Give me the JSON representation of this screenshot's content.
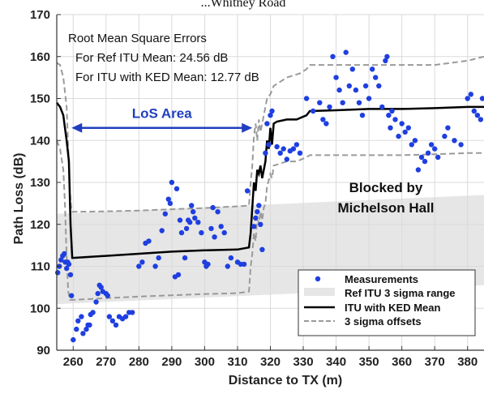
{
  "title_fragment": "...Whitney Road",
  "chart_data": {
    "type": "scatter",
    "xlabel": "Distance to TX (m)",
    "ylabel": "Path Loss (dB)",
    "xlim": [
      255,
      385
    ],
    "ylim": [
      90,
      170
    ],
    "xticks": [
      260,
      270,
      280,
      290,
      300,
      310,
      320,
      330,
      340,
      350,
      360,
      370,
      380
    ],
    "yticks": [
      90,
      100,
      110,
      120,
      130,
      140,
      150,
      160,
      170
    ],
    "grid": true,
    "legend_position": "bottom-right",
    "colors": {
      "measurements": "#1f3fe0",
      "band": "#e6e6e6",
      "ked_mean": "#000000",
      "sigma_offsets": "#9a9a9a",
      "los_arrow": "#1f3fbf"
    },
    "rmse_box": {
      "heading": "Root Mean Square Errors",
      "line1": "For Ref ITU Mean: 24.56 dB",
      "line2": "For ITU with KED Mean: 12.77 dB"
    },
    "annotations": {
      "los_area": "LoS Area",
      "los_range": [
        259,
        315
      ],
      "los_y": 143,
      "blocked_line1": "Blocked by",
      "blocked_line2": "Michelson Hall"
    },
    "series": [
      {
        "name": "Measurements",
        "kind": "points",
        "points": [
          [
            255.3,
            108.5
          ],
          [
            255.8,
            110
          ],
          [
            256.3,
            111.5
          ],
          [
            256.8,
            112.5
          ],
          [
            257.3,
            113
          ],
          [
            257.6,
            111
          ],
          [
            258,
            109.5
          ],
          [
            258.3,
            111
          ],
          [
            258.7,
            110.5
          ],
          [
            259.2,
            108
          ],
          [
            259.5,
            103
          ],
          [
            260,
            92.5
          ],
          [
            261,
            95
          ],
          [
            261.5,
            97
          ],
          [
            262.5,
            98
          ],
          [
            263,
            94
          ],
          [
            264,
            95
          ],
          [
            264.5,
            96
          ],
          [
            265.3,
            98.5
          ],
          [
            265,
            96
          ],
          [
            266,
            99
          ],
          [
            267,
            101.5
          ],
          [
            267.5,
            103.5
          ],
          [
            268,
            105.5
          ],
          [
            268.5,
            105
          ],
          [
            269,
            104
          ],
          [
            270,
            103.5
          ],
          [
            270.5,
            103
          ],
          [
            271,
            98
          ],
          [
            272,
            97
          ],
          [
            273,
            96
          ],
          [
            274,
            98
          ],
          [
            275,
            97.5
          ],
          [
            276,
            98
          ],
          [
            277,
            99
          ],
          [
            278,
            99
          ],
          [
            280,
            110
          ],
          [
            281,
            111
          ],
          [
            282,
            115.5
          ],
          [
            283,
            116
          ],
          [
            285,
            110
          ],
          [
            286,
            112
          ],
          [
            287,
            118.5
          ],
          [
            288,
            122.5
          ],
          [
            289,
            126
          ],
          [
            289.5,
            125
          ],
          [
            290,
            130
          ],
          [
            291,
            107.5
          ],
          [
            291.5,
            128.5
          ],
          [
            292,
            108
          ],
          [
            292.5,
            121
          ],
          [
            293,
            118
          ],
          [
            294,
            112
          ],
          [
            294.5,
            119
          ],
          [
            295,
            121
          ],
          [
            295.5,
            120.5
          ],
          [
            296,
            124.5
          ],
          [
            296.5,
            123
          ],
          [
            297,
            121.5
          ],
          [
            298,
            120.5
          ],
          [
            299,
            118
          ],
          [
            300,
            111
          ],
          [
            300.5,
            110
          ],
          [
            301,
            110.5
          ],
          [
            302,
            119
          ],
          [
            302.5,
            124
          ],
          [
            303,
            117
          ],
          [
            304,
            123
          ],
          [
            305,
            119.5
          ],
          [
            306,
            118
          ],
          [
            307,
            110
          ],
          [
            308,
            112
          ],
          [
            310,
            111
          ],
          [
            311,
            110.5
          ],
          [
            312,
            110.5
          ],
          [
            313,
            128
          ],
          [
            315,
            119.5
          ],
          [
            315.5,
            121.5
          ],
          [
            316,
            123
          ],
          [
            316.5,
            124.5
          ],
          [
            317,
            120
          ],
          [
            317.5,
            114
          ],
          [
            318.5,
            137
          ],
          [
            319,
            144
          ],
          [
            319.5,
            139
          ],
          [
            320,
            146
          ],
          [
            320.5,
            147
          ],
          [
            322,
            138.5
          ],
          [
            323,
            137
          ],
          [
            324,
            138
          ],
          [
            325,
            135.5
          ],
          [
            326,
            137.5
          ],
          [
            327,
            138
          ],
          [
            328,
            139
          ],
          [
            329,
            137
          ],
          [
            331,
            150
          ],
          [
            333,
            147
          ],
          [
            335,
            149
          ],
          [
            336,
            145
          ],
          [
            337,
            144
          ],
          [
            338,
            148
          ],
          [
            339,
            160
          ],
          [
            340,
            155
          ],
          [
            341,
            152
          ],
          [
            342,
            149
          ],
          [
            343,
            161
          ],
          [
            344,
            153
          ],
          [
            345,
            157
          ],
          [
            346,
            152
          ],
          [
            347,
            149
          ],
          [
            348,
            146
          ],
          [
            349,
            153
          ],
          [
            350,
            150
          ],
          [
            351,
            157
          ],
          [
            352,
            155
          ],
          [
            353,
            153
          ],
          [
            354,
            148
          ],
          [
            355,
            159
          ],
          [
            355.5,
            160
          ],
          [
            356,
            146
          ],
          [
            356.5,
            143
          ],
          [
            357,
            147
          ],
          [
            358,
            145
          ],
          [
            359,
            141
          ],
          [
            360,
            144
          ],
          [
            361,
            142
          ],
          [
            362,
            143
          ],
          [
            363,
            139
          ],
          [
            364,
            140
          ],
          [
            365,
            133
          ],
          [
            366,
            136
          ],
          [
            367,
            135
          ],
          [
            368,
            137
          ],
          [
            369,
            139
          ],
          [
            370,
            138
          ],
          [
            371,
            136
          ],
          [
            373,
            141
          ],
          [
            374,
            143
          ],
          [
            376,
            140
          ],
          [
            378,
            139
          ],
          [
            380,
            150
          ],
          [
            381,
            151
          ],
          [
            382,
            147
          ],
          [
            383,
            146
          ],
          [
            384,
            145
          ],
          [
            384.5,
            150
          ]
        ]
      },
      {
        "name": "Ref ITU 3 sigma range",
        "kind": "band",
        "x": [
          255,
          385
        ],
        "upper": [
          122.5,
          127
        ],
        "lower": [
          101,
          105.5
        ]
      },
      {
        "name": "ITU with KED Mean",
        "kind": "line",
        "points": [
          [
            255,
            149
          ],
          [
            256,
            148
          ],
          [
            257,
            146
          ],
          [
            257.5,
            143
          ],
          [
            258,
            140
          ],
          [
            258.7,
            135
          ],
          [
            259.2,
            120
          ],
          [
            259.7,
            112
          ],
          [
            260,
            112
          ],
          [
            270,
            112.5
          ],
          [
            280,
            113
          ],
          [
            290,
            113.5
          ],
          [
            300,
            113.8
          ],
          [
            310,
            114
          ],
          [
            313.5,
            114.5
          ],
          [
            314,
            118
          ],
          [
            314.5,
            124
          ],
          [
            315,
            130
          ],
          [
            315.5,
            128
          ],
          [
            316,
            133
          ],
          [
            316.5,
            132
          ],
          [
            317,
            134
          ],
          [
            317.5,
            131
          ],
          [
            318,
            133
          ],
          [
            318.5,
            135
          ],
          [
            319,
            140
          ],
          [
            319.5,
            138
          ],
          [
            320,
            143
          ],
          [
            320.5,
            139
          ],
          [
            321,
            144
          ],
          [
            322,
            144.5
          ],
          [
            325,
            145
          ],
          [
            328,
            145
          ],
          [
            331,
            146
          ],
          [
            332,
            147
          ],
          [
            340,
            147.2
          ],
          [
            350,
            147.5
          ],
          [
            360,
            147.5
          ],
          [
            370,
            147.7
          ],
          [
            380,
            148
          ],
          [
            385,
            148
          ]
        ]
      },
      {
        "name": "3 sigma offsets",
        "kind": "dashed",
        "upper": [
          [
            255,
            158.5
          ],
          [
            256,
            158
          ],
          [
            257,
            155
          ],
          [
            258,
            148
          ],
          [
            258.5,
            138
          ],
          [
            259,
            128
          ],
          [
            259.5,
            123
          ],
          [
            260,
            123
          ],
          [
            270,
            123.1
          ],
          [
            280,
            123.3
          ],
          [
            290,
            123.6
          ],
          [
            300,
            123.9
          ],
          [
            310,
            124.3
          ],
          [
            313.5,
            124.5
          ],
          [
            314,
            130
          ],
          [
            314.5,
            134
          ],
          [
            315,
            141
          ],
          [
            315.5,
            144
          ],
          [
            316,
            140
          ],
          [
            316.5,
            145
          ],
          [
            317,
            142
          ],
          [
            318,
            146
          ],
          [
            319,
            150
          ],
          [
            320,
            151
          ],
          [
            321,
            153
          ],
          [
            323,
            154
          ],
          [
            325,
            155
          ],
          [
            329,
            156
          ],
          [
            331,
            157
          ],
          [
            332,
            158
          ],
          [
            340,
            158
          ],
          [
            350,
            158
          ],
          [
            360,
            158
          ],
          [
            370,
            158
          ],
          [
            380,
            159
          ],
          [
            385,
            160
          ]
        ],
        "lower": [
          [
            255,
            140
          ],
          [
            256,
            138
          ],
          [
            257,
            133
          ],
          [
            257.5,
            125
          ],
          [
            258,
            112
          ],
          [
            258.5,
            104
          ],
          [
            259,
            102
          ],
          [
            260,
            102
          ],
          [
            270,
            102.4
          ],
          [
            280,
            102.8
          ],
          [
            290,
            103.1
          ],
          [
            300,
            103.4
          ],
          [
            310,
            103.6
          ],
          [
            313.5,
            104
          ],
          [
            314,
            110
          ],
          [
            314.5,
            113
          ],
          [
            315,
            118
          ],
          [
            315.5,
            116
          ],
          [
            316,
            122
          ],
          [
            316.5,
            120
          ],
          [
            317,
            123
          ],
          [
            317.5,
            121
          ],
          [
            318,
            124
          ],
          [
            318.5,
            125
          ],
          [
            319,
            129
          ],
          [
            320,
            132
          ],
          [
            320.5,
            131
          ],
          [
            321,
            134
          ],
          [
            323,
            134.5
          ],
          [
            325,
            135
          ],
          [
            328,
            135
          ],
          [
            331,
            136
          ],
          [
            332,
            136.5
          ],
          [
            340,
            136.5
          ],
          [
            350,
            136.5
          ],
          [
            360,
            136.5
          ],
          [
            370,
            136.7
          ],
          [
            380,
            137
          ],
          [
            385,
            137
          ]
        ]
      }
    ]
  }
}
